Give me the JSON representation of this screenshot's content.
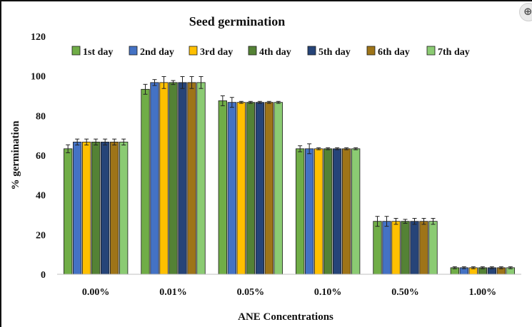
{
  "chart_data": {
    "type": "bar",
    "title": "Seed germination",
    "xlabel": "ANE Concentrations",
    "ylabel": "% germination",
    "ylim": [
      0,
      120
    ],
    "yticks": [
      "0",
      "20",
      "40",
      "60",
      "80",
      "100",
      "120"
    ],
    "ytick_values": [
      0,
      20,
      40,
      60,
      80,
      100,
      120
    ],
    "grid": false,
    "legend_position": "top",
    "categories": [
      "0.00%",
      "0.01%",
      "0.05%",
      "0.10%",
      "0.50%",
      "1.00%"
    ],
    "series": [
      {
        "name": "1st day",
        "color": "#70AD47",
        "values": [
          63.3,
          93.3,
          87.5,
          63.3,
          26.7,
          3.3
        ],
        "errors": [
          2,
          2.5,
          2.5,
          1.5,
          2.5,
          0.5
        ]
      },
      {
        "name": "2nd day",
        "color": "#4472C4",
        "values": [
          66.7,
          96.7,
          86.7,
          63.3,
          26.7,
          3.3
        ],
        "errors": [
          1.5,
          1.5,
          2.5,
          2.5,
          2.5,
          0.5
        ]
      },
      {
        "name": "3rd day",
        "color": "#FFC000",
        "values": [
          66.7,
          96.7,
          86.7,
          63.3,
          26.7,
          3.3
        ],
        "errors": [
          1.5,
          3,
          0.5,
          0.5,
          1.5,
          0.5
        ]
      },
      {
        "name": "4th day",
        "color": "#548235",
        "values": [
          66.7,
          96.7,
          86.7,
          63.3,
          26.7,
          3.3
        ],
        "errors": [
          1.5,
          1,
          0.5,
          0.5,
          1,
          0.5
        ]
      },
      {
        "name": "5th day",
        "color": "#264478",
        "values": [
          66.7,
          96.7,
          86.7,
          63.3,
          26.7,
          3.3
        ],
        "errors": [
          1.5,
          3,
          0.5,
          0.5,
          1.5,
          0.5
        ]
      },
      {
        "name": "6th day",
        "color": "#9E7418",
        "values": [
          66.7,
          96.7,
          86.7,
          63.3,
          26.7,
          3.3
        ],
        "errors": [
          1.5,
          3,
          0.5,
          0.5,
          1.5,
          0.5
        ]
      },
      {
        "name": "7th day",
        "color": "#8BCB73",
        "values": [
          66.7,
          96.7,
          86.7,
          63.3,
          26.7,
          3.3
        ],
        "errors": [
          1.5,
          3,
          0.5,
          0.5,
          1.5,
          0.5
        ]
      }
    ]
  }
}
